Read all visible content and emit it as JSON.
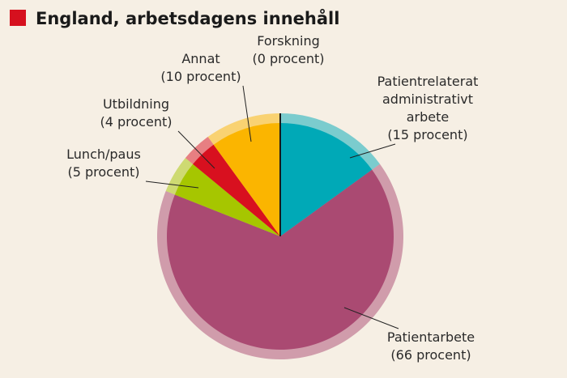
{
  "chart_data": {
    "type": "pie",
    "title": "England, arbetsdagens innehåll",
    "title_marker_color": "#d6101e",
    "categories": [
      "Patientrelaterat administrativt arbete",
      "Patientarbete",
      "Lunch/paus",
      "Utbildning",
      "Annat",
      "Forskning"
    ],
    "values": [
      15,
      66,
      5,
      4,
      10,
      0
    ],
    "value_labels": [
      "(15 procent)",
      "(66 procent)",
      "(5 procent)",
      "(4 procent)",
      "(10 procent)",
      "(0 procent)"
    ],
    "colors": [
      "#00a9b7",
      "#aa4a72",
      "#a6c600",
      "#d8101f",
      "#fbb500",
      "#1a1a1a"
    ]
  }
}
